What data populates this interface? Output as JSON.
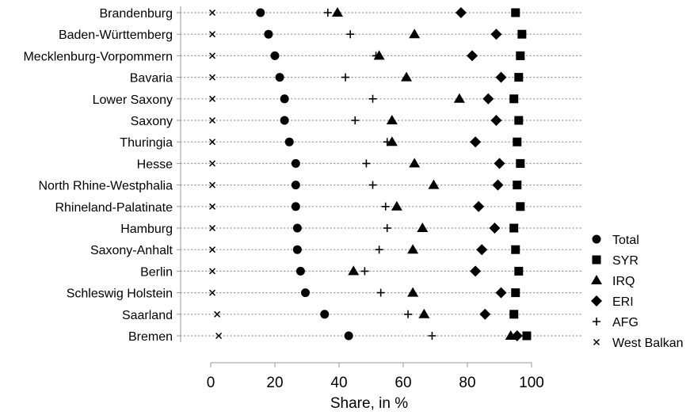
{
  "chart_data": {
    "type": "scatter",
    "xlabel": "Share, in %",
    "xlim": [
      0,
      100
    ],
    "xticks": [
      "0",
      "20",
      "40",
      "60",
      "80",
      "100"
    ],
    "legend_position": "right",
    "categories": [
      "Brandenburg",
      "Baden-Württemberg",
      "Mecklenburg-Vorpommern",
      "Bavaria",
      "Lower Saxony",
      "Saxony",
      "Thuringia",
      "Hesse",
      "North Rhine-Westphalia",
      "Rhineland-Palatinate",
      "Hamburg",
      "Saxony-Anhalt",
      "Berlin",
      "Schleswig Holstein",
      "Saarland",
      "Bremen"
    ],
    "series": [
      {
        "name": "Total",
        "marker": "circle",
        "values": [
          15.5,
          18,
          20,
          21.5,
          23,
          23,
          24.5,
          26.5,
          26.5,
          26.5,
          27,
          27,
          28,
          29.5,
          35.5,
          43
        ]
      },
      {
        "name": "SYR",
        "marker": "square",
        "values": [
          95,
          97,
          96.5,
          96,
          94.5,
          96,
          95.5,
          96.5,
          95.5,
          96.5,
          94.5,
          95,
          96,
          95,
          94.5,
          98.5
        ]
      },
      {
        "name": "IRQ",
        "marker": "triangle",
        "values": [
          39.5,
          63.5,
          52.5,
          61,
          77.5,
          56.5,
          56.5,
          63.5,
          69.5,
          58,
          66,
          63,
          44.5,
          63,
          66.5,
          93.5
        ]
      },
      {
        "name": "ERI",
        "marker": "diamond",
        "values": [
          78,
          89,
          81.5,
          90.5,
          86.5,
          89,
          82.5,
          90,
          89.5,
          83.5,
          88.5,
          84.5,
          82.5,
          90.5,
          85.5,
          95.5
        ]
      },
      {
        "name": "AFG",
        "marker": "plus",
        "values": [
          36.5,
          43.5,
          51.5,
          42,
          50.5,
          45,
          55,
          48.5,
          50.5,
          54.5,
          55,
          52.5,
          48,
          53,
          61.5,
          69
        ]
      },
      {
        "name": "West Balkan",
        "marker": "cross",
        "values": [
          0.5,
          0.5,
          0.5,
          0.5,
          0.5,
          0.5,
          0.5,
          0.5,
          0.5,
          0.5,
          0.5,
          0.5,
          0.5,
          0.5,
          2,
          2.5
        ]
      }
    ]
  }
}
